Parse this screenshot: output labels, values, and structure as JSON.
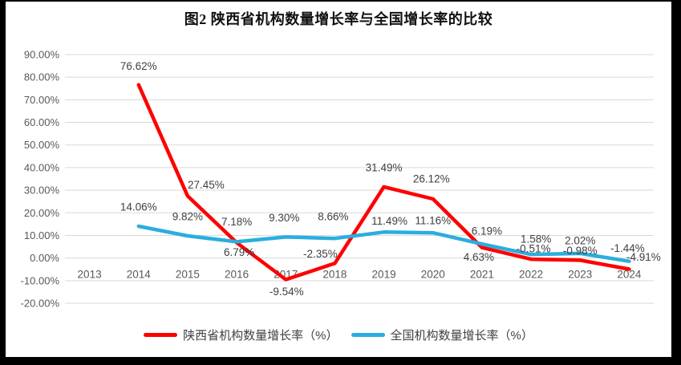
{
  "title": "图2 陕西省机构数量增长率与全国增长率的比较",
  "frame_color": "#000000",
  "background_color": "#ffffff",
  "gridline_color": "#d9d9d9",
  "axis_text_color": "#595959",
  "data_label_color": "#3f3f3f",
  "chart_data": {
    "type": "line",
    "title": "图2 陕西省机构数量增长率与全国增长率的比较",
    "categories": [
      "2013",
      "2014",
      "2015",
      "2016",
      "2017",
      "2018",
      "2019",
      "2020",
      "2021",
      "2022",
      "2023",
      "2024"
    ],
    "series": [
      {
        "name": "陕西省机构数量增长率（%）",
        "color": "#fe0000",
        "values": [
          null,
          76.62,
          27.45,
          6.79,
          -9.54,
          -2.35,
          31.49,
          26.12,
          4.63,
          -0.51,
          -0.98,
          -4.91
        ],
        "labels": [
          "",
          "76.62%",
          "27.45%",
          "6.79%",
          "-9.54%",
          "-2.35%",
          "31.49%",
          "26.12%",
          "4.63%",
          "-0.51%",
          "-0.98%",
          "-4.91%"
        ]
      },
      {
        "name": "全国机构数量增长率（%）",
        "color": "#2aaede",
        "values": [
          null,
          14.06,
          9.82,
          7.18,
          9.3,
          8.66,
          11.49,
          11.16,
          6.19,
          1.58,
          2.02,
          -1.44
        ],
        "labels": [
          "",
          "14.06%",
          "9.82%",
          "7.18%",
          "9.30%",
          "8.66%",
          "11.49%",
          "11.16%",
          "6.19%",
          "1.58%",
          "2.02%",
          "-1.44%"
        ]
      }
    ],
    "y_ticks": [
      "90.00%",
      "80.00%",
      "70.00%",
      "60.00%",
      "50.00%",
      "40.00%",
      "30.00%",
      "20.00%",
      "10.00%",
      "0.00%",
      "-10.00%",
      "-20.00%"
    ],
    "y_tick_values": [
      90,
      80,
      70,
      60,
      50,
      40,
      30,
      20,
      10,
      0,
      -10,
      -20
    ],
    "ylim": [
      -20,
      90
    ],
    "xlabel": "",
    "ylabel": "",
    "grid": "horizontal",
    "legend_position": "bottom",
    "data_labels": true
  }
}
